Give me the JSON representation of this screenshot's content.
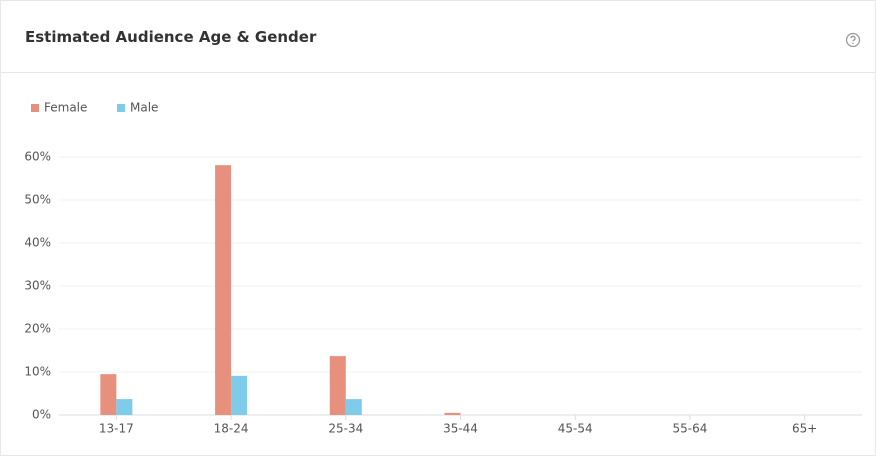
{
  "chart_data": {
    "type": "bar",
    "title": "Estimated Audience Age & Gender",
    "categories": [
      "13-17",
      "18-24",
      "25-34",
      "35-44",
      "45-54",
      "55-64",
      "65+"
    ],
    "series": [
      {
        "name": "Female",
        "color": "#e8907e",
        "values": [
          9.5,
          58.1,
          13.7,
          0.5,
          0,
          0,
          0
        ]
      },
      {
        "name": "Male",
        "color": "#7ecbea",
        "values": [
          3.7,
          9.1,
          3.7,
          0,
          0,
          0,
          0
        ]
      }
    ],
    "ylim": [
      0,
      60
    ],
    "yticks": [
      {
        "value": 0,
        "label": "0%"
      },
      {
        "value": 10,
        "label": "10%"
      },
      {
        "value": 20,
        "label": "20%"
      },
      {
        "value": 30,
        "label": "30%"
      },
      {
        "value": 40,
        "label": "40%"
      },
      {
        "value": 50,
        "label": "50%"
      },
      {
        "value": 60,
        "label": "60%"
      }
    ],
    "grid": true,
    "legend": "top-left"
  }
}
